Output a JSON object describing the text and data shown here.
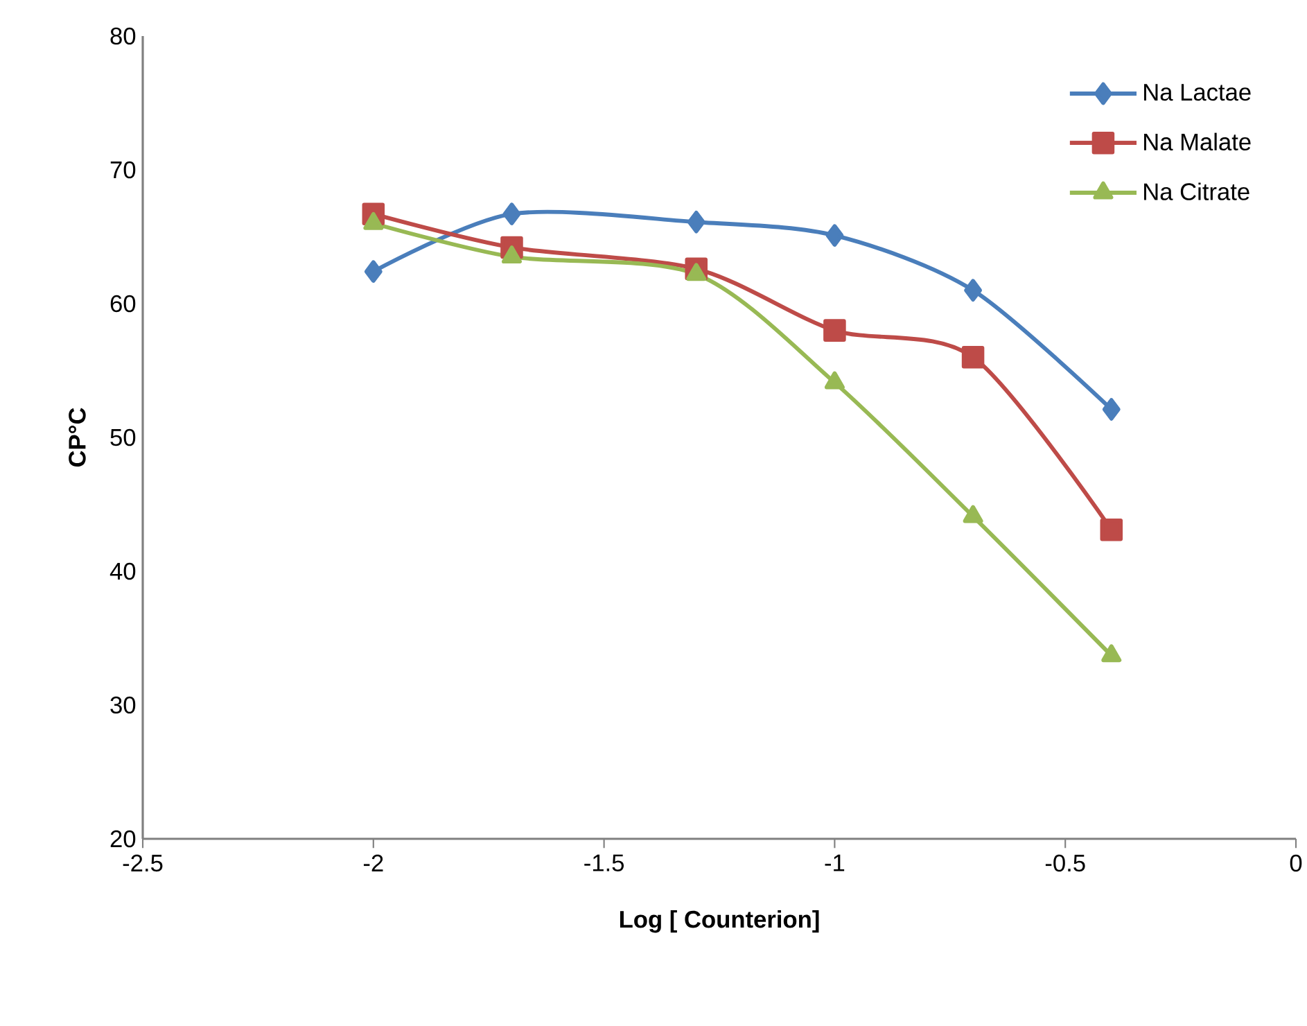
{
  "chart_data": {
    "type": "line",
    "xlabel": "Log [ Counterion]",
    "ylabel": "CP°C",
    "xlim": [
      -2.5,
      0
    ],
    "xticks": [
      -2.5,
      -2,
      -1.5,
      -1,
      -0.5,
      0
    ],
    "ylim": [
      20,
      80
    ],
    "yticks": [
      20,
      30,
      40,
      50,
      60,
      70,
      80
    ],
    "x": [
      -2,
      -1.7,
      -1.3,
      -1,
      -0.7,
      -0.4
    ],
    "series": [
      {
        "name": "Na Lactae",
        "color": "#4a7ebb",
        "marker": "diamond",
        "values": [
          62.4,
          66.7,
          66.1,
          65.1,
          61.0,
          52.1
        ]
      },
      {
        "name": "Na Malate",
        "color": "#be4b48",
        "marker": "square",
        "values": [
          66.7,
          64.2,
          62.6,
          58.0,
          56.0,
          43.1
        ]
      },
      {
        "name": "Na Citrate",
        "color": "#98b954",
        "marker": "triangle",
        "values": [
          66.0,
          63.5,
          62.2,
          54.1,
          44.1,
          33.7
        ]
      }
    ],
    "legend": "top right",
    "grid": false,
    "line_style": "solid"
  }
}
